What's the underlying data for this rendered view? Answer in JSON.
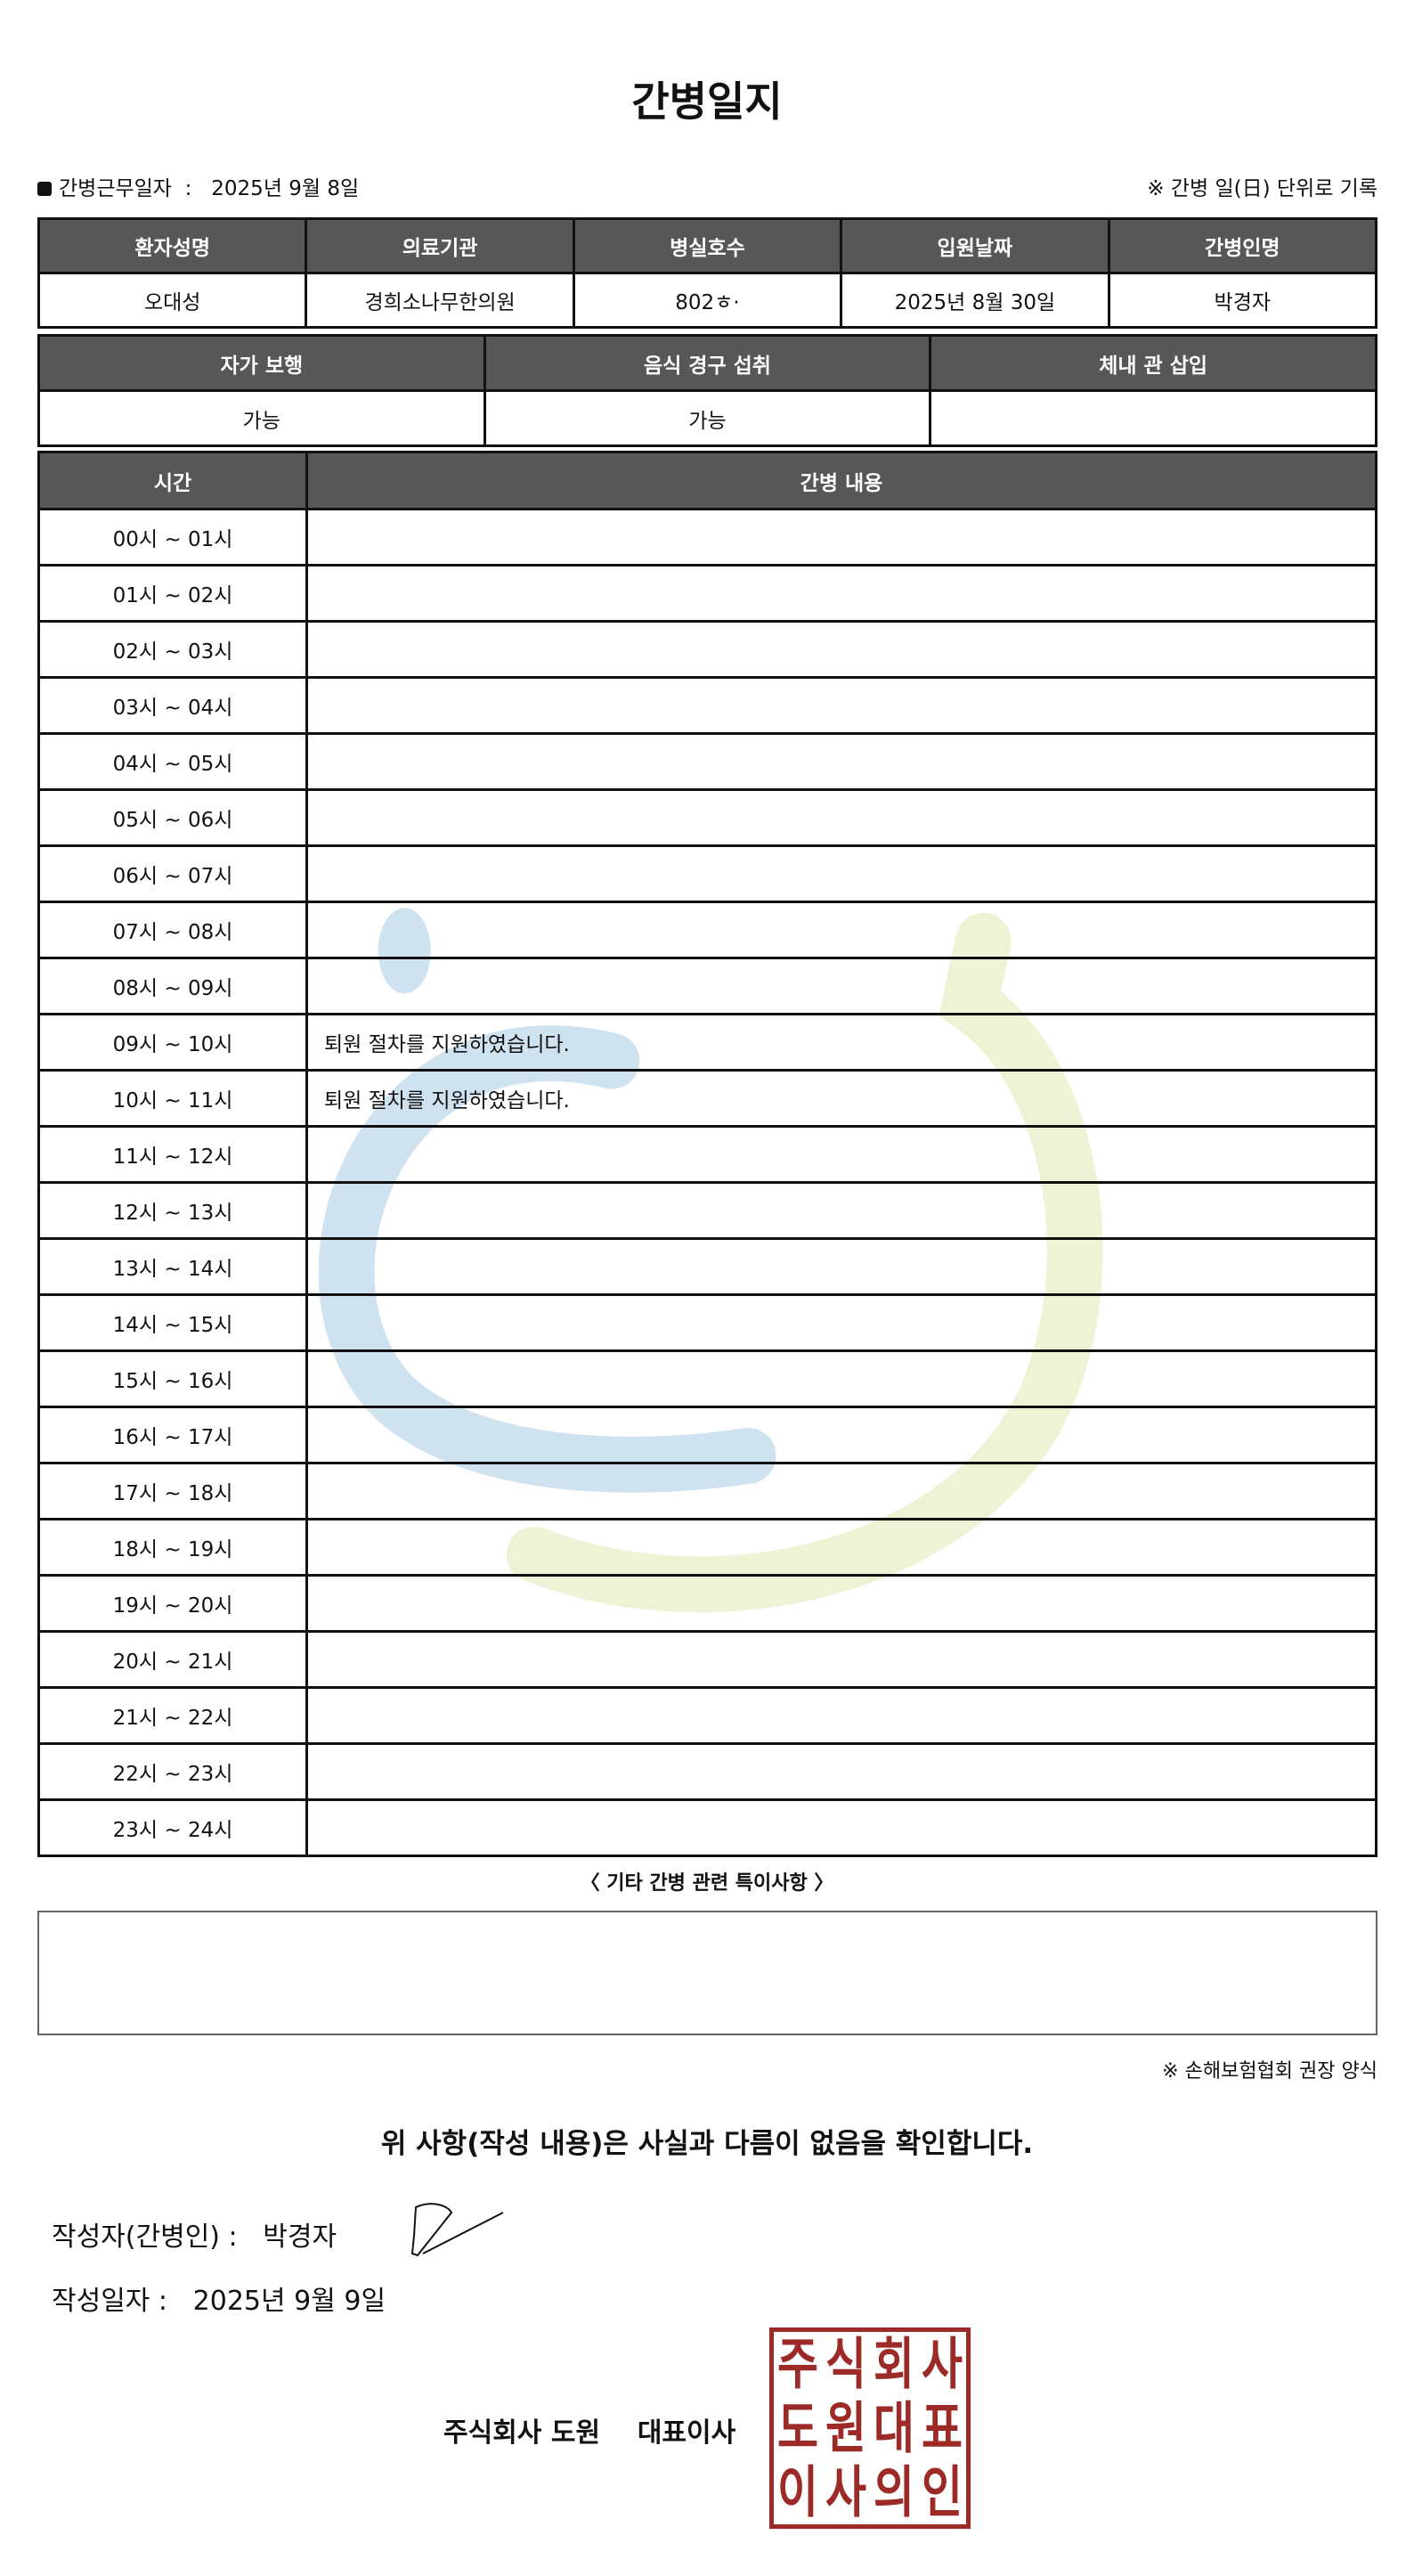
{
  "title": "간병일지",
  "work_date_label": "간병근무일자",
  "work_date": "2025년 9월 8일",
  "daily_note": "※ 간병 일(日) 단위로 기록",
  "info_table": {
    "headers": [
      "환자성명",
      "의료기관",
      "병실호수",
      "입원날짜",
      "간병인명"
    ],
    "values": [
      "오대성",
      "경희소나무한의원",
      "802ㅎ·",
      "2025년 8월 30일",
      "박경자"
    ]
  },
  "status_table": {
    "headers": [
      "자가 보행",
      "음식 경구 섭취",
      "체내 관 삽입"
    ],
    "values": [
      "가능",
      "가능",
      ""
    ]
  },
  "log_table": {
    "headers": [
      "시간",
      "간병 내용"
    ],
    "rows": [
      {
        "time": "00시 ~ 01시",
        "content": ""
      },
      {
        "time": "01시 ~ 02시",
        "content": ""
      },
      {
        "time": "02시 ~ 03시",
        "content": ""
      },
      {
        "time": "03시 ~ 04시",
        "content": ""
      },
      {
        "time": "04시 ~ 05시",
        "content": ""
      },
      {
        "time": "05시 ~ 06시",
        "content": ""
      },
      {
        "time": "06시 ~ 07시",
        "content": ""
      },
      {
        "time": "07시 ~ 08시",
        "content": ""
      },
      {
        "time": "08시 ~ 09시",
        "content": ""
      },
      {
        "time": "09시 ~ 10시",
        "content": "퇴원 절차를 지원하였습니다."
      },
      {
        "time": "10시 ~ 11시",
        "content": "퇴원 절차를 지원하였습니다."
      },
      {
        "time": "11시 ~ 12시",
        "content": ""
      },
      {
        "time": "12시 ~ 13시",
        "content": ""
      },
      {
        "time": "13시 ~ 14시",
        "content": ""
      },
      {
        "time": "14시 ~ 15시",
        "content": ""
      },
      {
        "time": "15시 ~ 16시",
        "content": ""
      },
      {
        "time": "16시 ~ 17시",
        "content": ""
      },
      {
        "time": "17시 ~ 18시",
        "content": ""
      },
      {
        "time": "18시 ~ 19시",
        "content": ""
      },
      {
        "time": "19시 ~ 20시",
        "content": ""
      },
      {
        "time": "20시 ~ 21시",
        "content": ""
      },
      {
        "time": "21시 ~ 22시",
        "content": ""
      },
      {
        "time": "22시 ~ 23시",
        "content": ""
      },
      {
        "time": "23시 ~ 24시",
        "content": ""
      }
    ]
  },
  "notes_label": "〈 기타 간병 관련 특이사항 〉",
  "notes_content": "",
  "form_note": "※ 손해보험협회 권장 양식",
  "confirmation": "위 사항(작성 내용)은 사실과 다름이 없음을 확인합니다.",
  "writer_label": "작성자(간병인) :",
  "writer_name": "박경자",
  "written_date_label": "작성일자 :",
  "written_date": "2025년 9월 9일",
  "company": "주식회사 도원",
  "representative": "대표이사",
  "seal_text": "주식회사도원대표이사의인",
  "colors": {
    "header_bg": "#575757",
    "seal": "#9c2a26",
    "watermark_blue": "#cfe2f0",
    "watermark_green": "#eef3d6"
  }
}
